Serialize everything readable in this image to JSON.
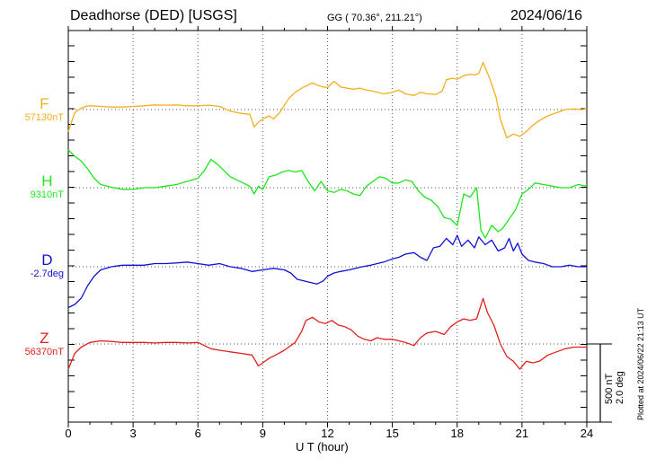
{
  "header": {
    "station": "Deadhorse (DED)  [USGS]",
    "coords": "GG ( 70.36°, 211.21°)",
    "date": "2024/06/16"
  },
  "footer": {
    "plotted": "Plotted at 2024/06/22 21:13 UT",
    "scale_nt": "500 nT",
    "scale_deg": "2.0 deg"
  },
  "chart_data": {
    "type": "line",
    "xlabel": "U T (hour)",
    "xlim": [
      0,
      24
    ],
    "xticks": [
      "0",
      "3",
      "6",
      "9",
      "12",
      "15",
      "18",
      "21",
      "24"
    ],
    "grid": true,
    "scale": {
      "H_F_Z_nT_per_panel": 500,
      "D_deg_per_panel": 2.0
    },
    "series": [
      {
        "name": "F",
        "baseline_label": "57130nT",
        "color": "#f2b01e",
        "x": [
          0,
          0.3,
          0.5,
          0.8,
          1.0,
          1.5,
          2.0,
          2.5,
          3.0,
          3.5,
          4.0,
          4.5,
          5.0,
          5.5,
          6.0,
          6.5,
          7.0,
          7.5,
          8.0,
          8.4,
          8.6,
          8.8,
          9.0,
          9.3,
          9.5,
          9.8,
          10.2,
          10.5,
          10.8,
          11.0,
          11.3,
          11.5,
          11.8,
          12.0,
          12.3,
          12.6,
          12.9,
          13.2,
          13.5,
          13.8,
          14.0,
          14.3,
          14.6,
          15.0,
          15.3,
          15.6,
          16.0,
          16.3,
          16.6,
          17.0,
          17.3,
          17.5,
          17.8,
          18.0,
          18.3,
          18.6,
          18.8,
          19.0,
          19.2,
          19.5,
          19.8,
          20.0,
          20.3,
          20.6,
          20.9,
          21.2,
          21.5,
          21.8,
          22.2,
          22.6,
          23.0,
          23.4,
          23.8,
          24.0
        ],
        "y": [
          -70,
          -10,
          0,
          10,
          12,
          10,
          8,
          8,
          10,
          12,
          15,
          14,
          15,
          12,
          12,
          14,
          10,
          -5,
          -12,
          -15,
          -55,
          -40,
          -30,
          -20,
          -30,
          -8,
          35,
          55,
          68,
          75,
          85,
          78,
          72,
          70,
          90,
          72,
          68,
          65,
          68,
          62,
          60,
          55,
          50,
          55,
          62,
          50,
          45,
          55,
          50,
          48,
          58,
          95,
          100,
          96,
          108,
          112,
          110,
          115,
          150,
          100,
          40,
          -30,
          -90,
          -78,
          -85,
          -70,
          -50,
          -35,
          -20,
          -10,
          0,
          2,
          0,
          3
        ]
      },
      {
        "name": "H",
        "baseline_label": "9310nT",
        "color": "#1de61d",
        "x": [
          0,
          0.3,
          0.6,
          0.9,
          1.2,
          1.5,
          1.8,
          2.1,
          2.5,
          3.0,
          3.5,
          4.0,
          4.5,
          5.0,
          5.5,
          6.0,
          6.3,
          6.6,
          6.9,
          7.2,
          7.5,
          7.8,
          8.1,
          8.4,
          8.6,
          8.8,
          9.0,
          9.3,
          9.6,
          9.9,
          10.2,
          10.5,
          10.8,
          11.1,
          11.4,
          11.7,
          12.0,
          12.3,
          12.6,
          12.9,
          13.2,
          13.5,
          13.8,
          14.1,
          14.4,
          14.7,
          15.0,
          15.3,
          15.6,
          15.9,
          16.2,
          16.5,
          16.8,
          17.1,
          17.4,
          17.7,
          18.0,
          18.3,
          18.6,
          18.9,
          19.1,
          19.3,
          19.6,
          19.9,
          20.1,
          20.4,
          20.7,
          21.0,
          21.3,
          21.6,
          22.0,
          22.4,
          22.8,
          23.2,
          23.6,
          24.0
        ],
        "y": [
          120,
          100,
          85,
          60,
          30,
          10,
          5,
          0,
          -5,
          -5,
          0,
          0,
          5,
          10,
          20,
          30,
          55,
          90,
          75,
          55,
          35,
          25,
          15,
          5,
          -20,
          5,
          -5,
          35,
          40,
          50,
          55,
          50,
          55,
          20,
          -10,
          20,
          -10,
          -15,
          -5,
          -10,
          -20,
          -25,
          5,
          20,
          35,
          30,
          15,
          15,
          25,
          20,
          -10,
          -30,
          -40,
          -60,
          -95,
          -100,
          -120,
          -20,
          -30,
          0,
          -135,
          -160,
          -120,
          -140,
          -130,
          -100,
          -70,
          -20,
          -5,
          15,
          10,
          5,
          0,
          0,
          10,
          5
        ]
      },
      {
        "name": "D",
        "baseline_label": "-2.7deg",
        "color": "#1111d6",
        "x": [
          0,
          0.3,
          0.6,
          0.9,
          1.2,
          1.5,
          2.0,
          2.5,
          3.0,
          3.5,
          4.0,
          4.5,
          5.0,
          5.5,
          6.0,
          6.5,
          7.0,
          7.5,
          8.0,
          8.5,
          9.0,
          9.5,
          10.0,
          10.3,
          10.6,
          10.9,
          11.2,
          11.5,
          11.8,
          12.0,
          12.3,
          12.6,
          13.0,
          13.3,
          13.6,
          14.0,
          14.3,
          14.6,
          15.0,
          15.3,
          15.6,
          16.0,
          16.3,
          16.6,
          16.9,
          17.2,
          17.5,
          17.8,
          18.0,
          18.2,
          18.5,
          18.8,
          19.0,
          19.3,
          19.6,
          19.9,
          20.2,
          20.4,
          20.6,
          20.8,
          21.0,
          21.3,
          21.6,
          22.0,
          22.4,
          22.8,
          23.2,
          23.6,
          24.0
        ],
        "y": [
          -130,
          -120,
          -100,
          -60,
          -30,
          -10,
          0,
          5,
          5,
          5,
          10,
          10,
          12,
          15,
          10,
          5,
          10,
          0,
          -5,
          -15,
          -10,
          -5,
          -10,
          -20,
          -40,
          -45,
          -50,
          -55,
          -45,
          -30,
          -20,
          -15,
          -10,
          -5,
          0,
          5,
          10,
          15,
          25,
          30,
          40,
          45,
          30,
          20,
          60,
          65,
          90,
          70,
          100,
          65,
          85,
          60,
          95,
          70,
          85,
          50,
          60,
          90,
          50,
          75,
          40,
          20,
          15,
          10,
          0,
          0,
          5,
          0,
          0
        ]
      },
      {
        "name": "Z",
        "baseline_label": "56370nT",
        "color": "#e0201e",
        "x": [
          0,
          0.3,
          0.6,
          1.0,
          1.5,
          2.0,
          2.5,
          3.0,
          3.5,
          4.0,
          4.5,
          5.0,
          5.5,
          6.0,
          6.3,
          6.6,
          7.0,
          7.5,
          8.0,
          8.5,
          8.8,
          9.0,
          9.3,
          9.6,
          10.0,
          10.5,
          10.8,
          11.0,
          11.3,
          11.6,
          11.9,
          12.2,
          12.5,
          12.8,
          13.1,
          13.4,
          13.7,
          14.0,
          14.3,
          14.6,
          15.0,
          15.3,
          15.6,
          16.0,
          16.3,
          16.6,
          17.0,
          17.4,
          17.7,
          18.0,
          18.3,
          18.6,
          18.9,
          19.2,
          19.4,
          19.7,
          20.0,
          20.3,
          20.6,
          20.9,
          21.2,
          21.5,
          21.8,
          22.2,
          22.6,
          23.0,
          23.4,
          23.8,
          24.0
        ],
        "y": [
          -80,
          -30,
          -10,
          5,
          10,
          8,
          5,
          5,
          5,
          3,
          5,
          5,
          3,
          5,
          -5,
          -15,
          -20,
          -25,
          -30,
          -35,
          -70,
          -60,
          -45,
          -35,
          -20,
          5,
          40,
          75,
          85,
          70,
          65,
          75,
          60,
          55,
          45,
          25,
          15,
          10,
          20,
          15,
          15,
          10,
          5,
          -5,
          20,
          35,
          40,
          30,
          55,
          70,
          80,
          75,
          80,
          145,
          100,
          60,
          0,
          -40,
          -55,
          -80,
          -55,
          -60,
          -55,
          -35,
          -25,
          -15,
          -10,
          -10,
          -10
        ]
      }
    ]
  }
}
